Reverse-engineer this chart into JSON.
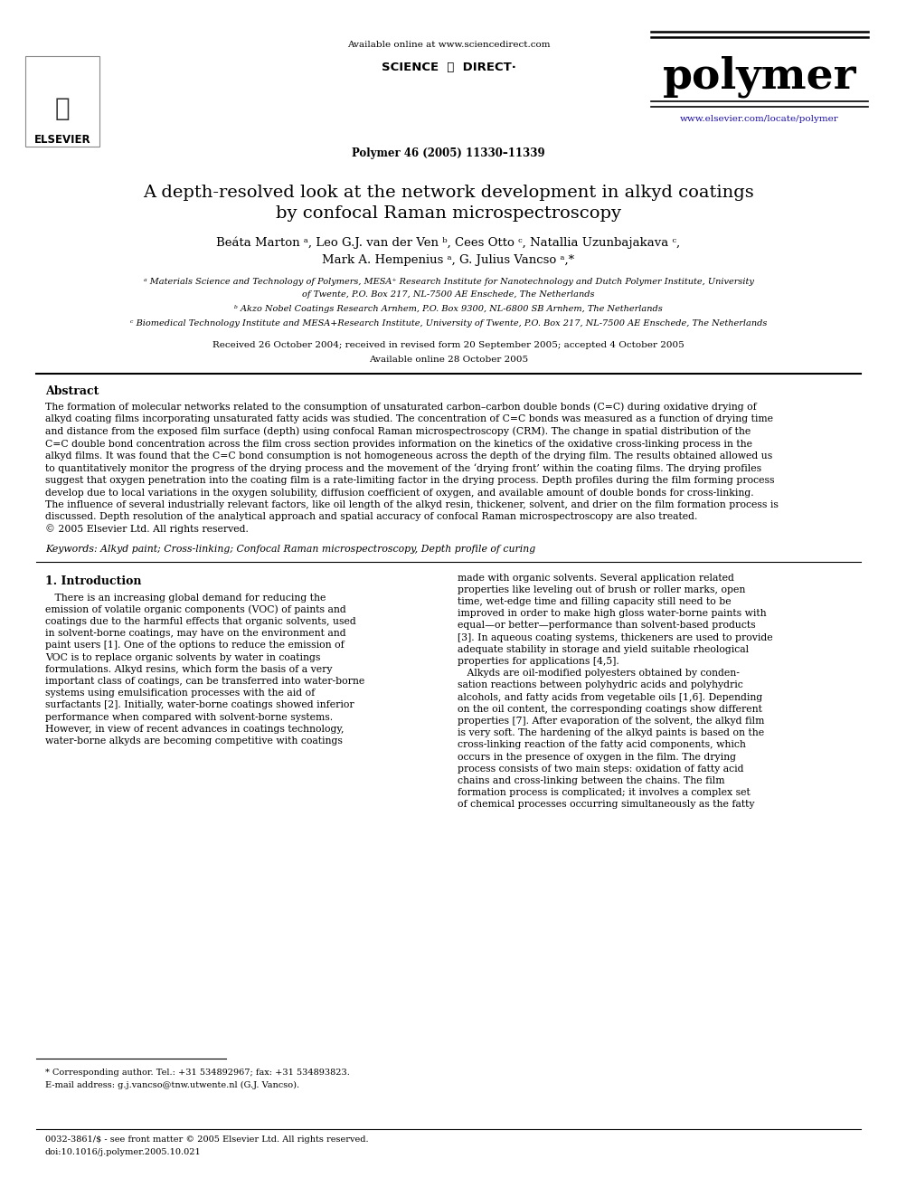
{
  "bg_color": "#ffffff",
  "title_line1": "A depth-resolved look at the network development in alkyd coatings",
  "title_line2": "by confocal Raman microspectroscopy",
  "authors_line1": "Beáta Marton ᵃ, Leo G.J. van der Ven ᵇ, Cees Otto ᶜ, Natallia Uzunbajakava ᶜ,",
  "authors_line2": "Mark A. Hempenius ᵃ, G. Julius Vancso ᵃ,*",
  "affil_a1": "ᵃ Materials Science and Technology of Polymers, MESA⁺ Research Institute for Nanotechnology and Dutch Polymer Institute, University",
  "affil_a2": "of Twente, P.O. Box 217, NL-7500 AE Enschede, The Netherlands",
  "affil_b": "ᵇ Akzo Nobel Coatings Research Arnhem, P.O. Box 9300, NL-6800 SB Arnhem, The Netherlands",
  "affil_c": "ᶜ Biomedical Technology Institute and MESA+Research Institute, University of Twente, P.O. Box 217, NL-7500 AE Enschede, The Netherlands",
  "received": "Received 26 October 2004; received in revised form 20 September 2005; accepted 4 October 2005",
  "available": "Available online 28 October 2005",
  "journal_info": "Polymer 46 (2005) 11330–11339",
  "available_online": "Available online at www.sciencedirect.com",
  "sciencedirect_logo": "SCIENCE  ⓓ  DIRECT·",
  "url": "www.elsevier.com/locate/polymer",
  "elsevier_text": "ELSEVIER",
  "polymer_text": "polymer",
  "abstract_title": "Abstract",
  "abstract_lines": [
    "The formation of molecular networks related to the consumption of unsaturated carbon–carbon double bonds (C=C) during oxidative drying of",
    "alkyd coating films incorporating unsaturated fatty acids was studied. The concentration of C=C bonds was measured as a function of drying time",
    "and distance from the exposed film surface (depth) using confocal Raman microspectroscopy (CRM). The change in spatial distribution of the",
    "C=C double bond concentration across the film cross section provides information on the kinetics of the oxidative cross-linking process in the",
    "alkyd films. It was found that the C=C bond consumption is not homogeneous across the depth of the drying film. The results obtained allowed us",
    "to quantitatively monitor the progress of the drying process and the movement of the ‘drying front’ within the coating films. The drying profiles",
    "suggest that oxygen penetration into the coating film is a rate-limiting factor in the drying process. Depth profiles during the film forming process",
    "develop due to local variations in the oxygen solubility, diffusion coefficient of oxygen, and available amount of double bonds for cross-linking.",
    "The influence of several industrially relevant factors, like oil length of the alkyd resin, thickener, solvent, and drier on the film formation process is",
    "discussed. Depth resolution of the analytical approach and spatial accuracy of confocal Raman microspectroscopy are also treated.",
    "© 2005 Elsevier Ltd. All rights reserved."
  ],
  "keywords": "Keywords: Alkyd paint; Cross-linking; Confocal Raman microspectroscopy, Depth profile of curing",
  "section1_title": "1. Introduction",
  "col1_lines": [
    "   There is an increasing global demand for reducing the",
    "emission of volatile organic components (VOC) of paints and",
    "coatings due to the harmful effects that organic solvents, used",
    "in solvent-borne coatings, may have on the environment and",
    "paint users [1]. One of the options to reduce the emission of",
    "VOC is to replace organic solvents by water in coatings",
    "formulations. Alkyd resins, which form the basis of a very",
    "important class of coatings, can be transferred into water-borne",
    "systems using emulsification processes with the aid of",
    "surfactants [2]. Initially, water-borne coatings showed inferior",
    "performance when compared with solvent-borne systems.",
    "However, in view of recent advances in coatings technology,",
    "water-borne alkyds are becoming competitive with coatings"
  ],
  "col2_lines": [
    "made with organic solvents. Several application related",
    "properties like leveling out of brush or roller marks, open",
    "time, wet-edge time and filling capacity still need to be",
    "improved in order to make high gloss water-borne paints with",
    "equal—or better—performance than solvent-based products",
    "[3]. In aqueous coating systems, thickeners are used to provide",
    "adequate stability in storage and yield suitable rheological",
    "properties for applications [4,5].",
    "   Alkyds are oil-modified polyesters obtained by conden-",
    "sation reactions between polyhydric acids and polyhydric",
    "alcohols, and fatty acids from vegetable oils [1,6]. Depending",
    "on the oil content, the corresponding coatings show different",
    "properties [7]. After evaporation of the solvent, the alkyd film",
    "is very soft. The hardening of the alkyd paints is based on the",
    "cross-linking reaction of the fatty acid components, which",
    "occurs in the presence of oxygen in the film. The drying",
    "process consists of two main steps: oxidation of fatty acid",
    "chains and cross-linking between the chains. The film",
    "formation process is complicated; it involves a complex set",
    "of chemical processes occurring simultaneously as the fatty"
  ],
  "footnote_star": "* Corresponding author. Tel.: +31 534892967; fax: +31 534893823.",
  "footnote_email": "E-mail address: g.j.vancso@tnw.utwente.nl (G.J. Vancso).",
  "footnote_bottom1": "0032-3861/$ - see front matter © 2005 Elsevier Ltd. All rights reserved.",
  "footnote_bottom2": "doi:10.1016/j.polymer.2005.10.021"
}
